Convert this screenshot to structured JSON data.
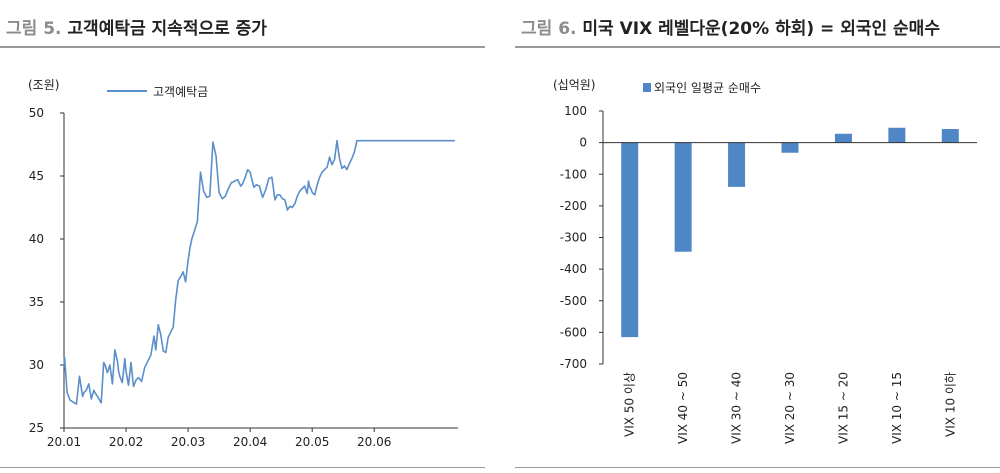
{
  "left": {
    "figure_number": "그림 5.",
    "figure_title": "고객예탁금 지속적으로 증가",
    "chart_data": {
      "type": "line",
      "unit": "(조원)",
      "series": [
        {
          "name": "고객예탁금",
          "color": "#5b8fc9",
          "x": [
            0.0,
            0.01,
            0.05,
            0.1,
            0.2,
            0.25,
            0.3,
            0.32,
            0.36,
            0.4,
            0.44,
            0.48,
            0.5,
            0.54,
            0.6,
            0.64,
            0.66,
            0.68,
            0.7,
            0.74,
            0.78,
            0.82,
            0.86,
            0.88,
            0.9,
            0.94,
            0.98,
            1.0,
            1.04,
            1.08,
            1.12,
            1.16,
            1.2,
            1.25,
            1.3,
            1.35,
            1.4,
            1.45,
            1.48,
            1.52,
            1.56,
            1.6,
            1.64,
            1.68,
            1.72,
            1.76,
            1.8,
            1.84,
            1.88,
            1.92,
            1.96,
            2.0,
            2.03,
            2.06,
            2.1,
            2.15,
            2.2,
            2.25,
            2.3,
            2.35,
            2.4,
            2.45,
            2.5,
            2.55,
            2.6,
            2.65,
            2.7,
            2.72,
            2.75,
            2.8,
            2.85,
            2.88,
            2.92,
            2.96,
            3.0,
            3.03,
            3.06,
            3.1,
            3.15,
            3.2,
            3.25,
            3.3,
            3.35,
            3.4,
            3.44,
            3.48,
            3.52,
            3.56,
            3.6,
            3.64,
            3.68,
            3.72,
            3.76,
            3.8,
            3.84,
            3.86,
            3.88,
            3.92,
            3.94,
            3.96,
            3.98,
            4.0,
            4.04,
            4.08,
            4.12,
            4.16,
            4.2,
            4.24,
            4.28,
            4.32,
            4.36,
            4.4,
            4.44,
            4.48,
            4.52,
            4.56,
            4.6,
            4.64,
            4.68,
            4.72,
            4.76,
            4.8,
            4.84,
            4.88,
            4.92,
            4.96,
            5.0,
            5.03,
            5.06,
            5.1,
            5.14,
            5.18,
            5.22,
            5.26,
            5.3,
            5.34,
            5.38,
            5.42,
            5.46,
            5.5,
            5.54,
            5.58,
            5.62,
            5.66,
            5.7,
            5.74,
            5.78,
            5.82,
            5.86,
            5.9,
            5.94,
            5.98,
            6.02,
            6.06,
            6.1,
            6.14,
            6.18,
            6.22,
            6.26,
            6.28,
            6.3,
            6.32,
            6.34
          ],
          "values": [
            29.8,
            30.6,
            27.8,
            27.2,
            26.9,
            29.1,
            27.5,
            27.8,
            28.0,
            28.5,
            27.3,
            28.0,
            27.8,
            27.5,
            27.0,
            30.2,
            30.0,
            29.7,
            29.4,
            30.0,
            28.5,
            31.2,
            30.3,
            29.5,
            29.1,
            28.6,
            30.5,
            29.5,
            28.4,
            30.2,
            28.3,
            28.8,
            29.0,
            28.7,
            29.8,
            30.3,
            30.8,
            32.3,
            31.2,
            33.2,
            32.4,
            31.1,
            31.0,
            32.2,
            32.6,
            33.0,
            35.2,
            36.7,
            37.0,
            37.4,
            36.6,
            38.3,
            39.3,
            40.0,
            40.6,
            41.4,
            45.3,
            43.8,
            43.3,
            43.4,
            47.7,
            46.6,
            43.7,
            43.2,
            43.4,
            44.0,
            44.5,
            44.5,
            44.6,
            44.7,
            44.2,
            44.4,
            44.9,
            45.5,
            45.3,
            44.7,
            44.1,
            44.3,
            44.2,
            43.3,
            43.9,
            44.8,
            44.9,
            43.1,
            43.5,
            43.5,
            43.2,
            43.1,
            42.3,
            42.6,
            42.5,
            42.8,
            43.4,
            43.8,
            44.0,
            44.1,
            44.2,
            43.6,
            44.6,
            44.1,
            44.0,
            43.7,
            43.5,
            44.3,
            44.9,
            45.3,
            45.5,
            45.7,
            46.5,
            45.9,
            46.3,
            47.8,
            46.4,
            45.6,
            45.8,
            45.5,
            46.0,
            46.4,
            46.9,
            47.8,
            47.8,
            47.8,
            47.8,
            47.8,
            47.8,
            47.8,
            47.8,
            47.8,
            47.8,
            47.8,
            47.8,
            47.8,
            47.8,
            47.8,
            47.8,
            47.8,
            47.8,
            47.8,
            47.8,
            47.8,
            47.8,
            47.8,
            47.8,
            47.8,
            47.8,
            47.8,
            47.8,
            47.8,
            47.8,
            47.8,
            47.8,
            47.8,
            47.8,
            47.8,
            47.8,
            47.8,
            47.8,
            47.8,
            47.8,
            47.8,
            47.8,
            47.8,
            47.8
          ]
        }
      ],
      "yticks": [
        "50",
        "45",
        "40",
        "35",
        "30",
        "25"
      ],
      "ylim": [
        25,
        50
      ],
      "xticks": [
        "20.01",
        "20.02",
        "20.03",
        "20.04",
        "20.05",
        "20.06"
      ],
      "xlim": [
        0,
        6.35
      ]
    }
  },
  "right": {
    "figure_number": "그림 6.",
    "figure_title": "미국 VIX 레벨다운(20% 하회) = 외국인 순매수",
    "chart_data": {
      "type": "bar",
      "unit": "(십억원)",
      "series": [
        {
          "name": "외국인 일평균 순매수",
          "color": "#4f86c6",
          "values": [
            -615,
            -345,
            -140,
            -32,
            28,
            47,
            43
          ]
        }
      ],
      "categories": [
        "VIX 50 이상",
        "VIX 40 ~ 50",
        "VIX 30 ~ 40",
        "VIX 20 ~ 30",
        "VIX 15 ~ 20",
        "VIX 10 ~ 15",
        "VIX 10 이하"
      ],
      "yticks": [
        "100",
        "0",
        "-100",
        "-200",
        "-300",
        "-400",
        "-500",
        "-600",
        "-700"
      ],
      "ylim": [
        -700,
        100
      ]
    }
  }
}
